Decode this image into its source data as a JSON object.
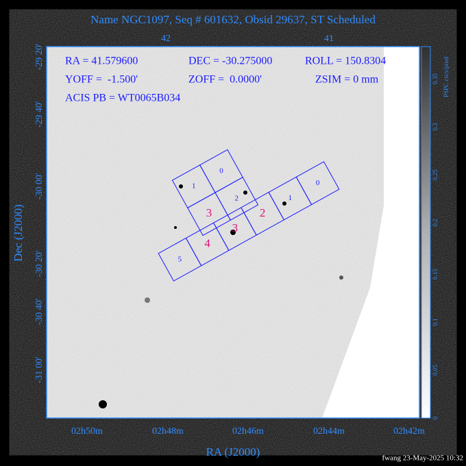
{
  "title": "Name NGC1097, Seq # 601632, Obsid 29637, ST Scheduled",
  "top_axis": {
    "ticks": [
      "42",
      "41"
    ]
  },
  "left_axis": {
    "label": "Dec (J2000)",
    "ticks": [
      "-29 20'",
      "-29 40'",
      "-30 00'",
      "-30 20'",
      "-30 40'",
      "-31 00'"
    ]
  },
  "bottom_axis": {
    "label": "RA (J2000)",
    "ticks": [
      "02h50m",
      "02h48m",
      "02h46m",
      "02h44m",
      "02h42m"
    ]
  },
  "colorbar": {
    "label": "PSPC cts/s/pixel",
    "ticks": [
      "0.35",
      "0.3",
      "0.25",
      "0.2",
      "0.15",
      "0.1",
      "0.05",
      "0"
    ]
  },
  "parameters": [
    "RA = 41.579600",
    "DEC = -30.275000",
    "ROLL = 150.8304",
    "YOFF =  -1.500'",
    "ZOFF =  0.0000'",
    "ZSIM = 0 mm",
    "ACIS PB = WT0065B034"
  ],
  "i_array": [
    "0",
    "1",
    "2",
    "3"
  ],
  "s_array": [
    "0",
    "1",
    "2",
    "3",
    "4",
    "5"
  ],
  "footer": "fwang 23-May-2025 10:32"
}
